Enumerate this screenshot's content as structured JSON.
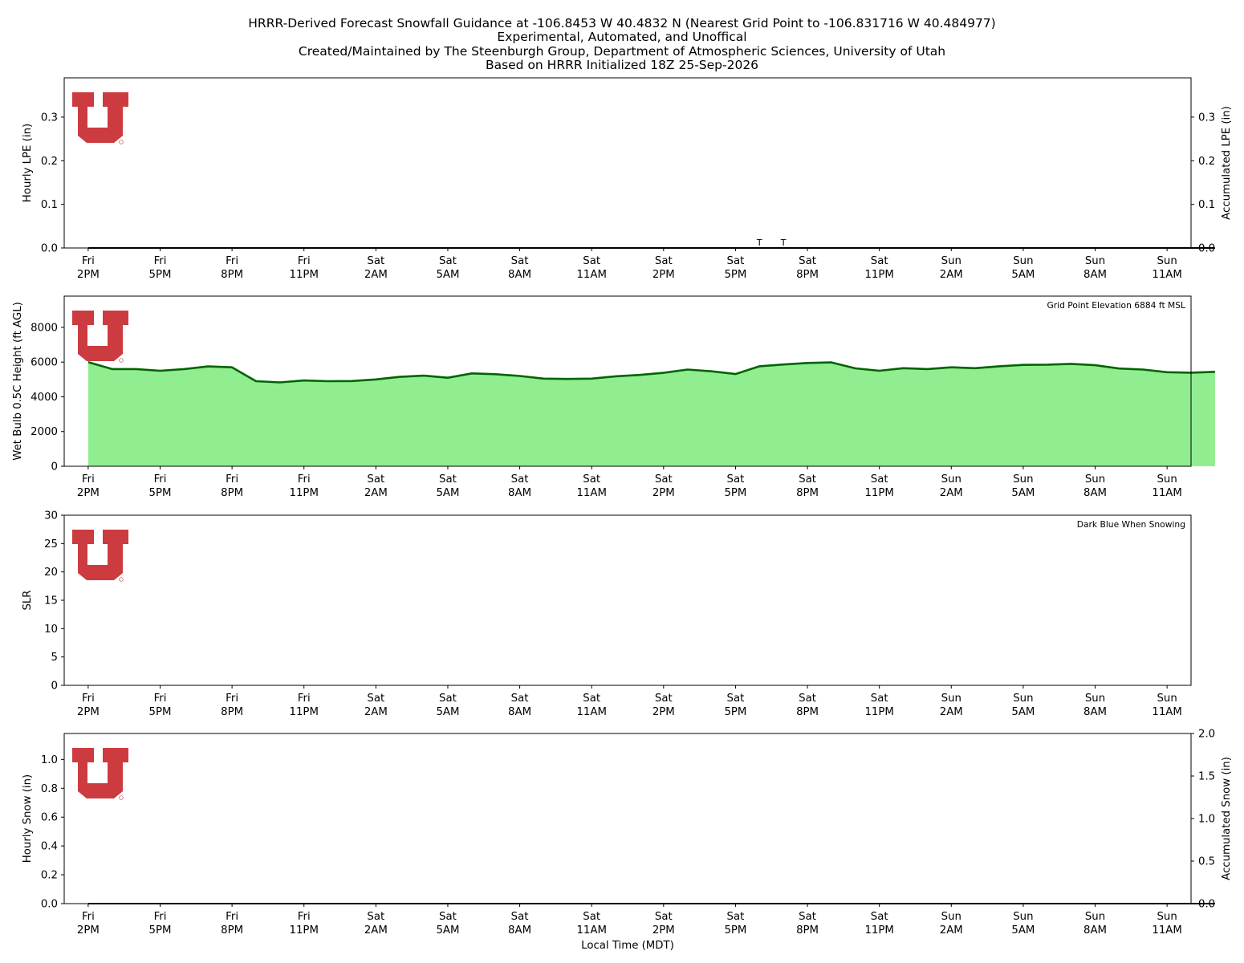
{
  "title_lines": [
    "HRRR-Derived Forecast Snowfall Guidance at -106.8453 W 40.4832 N (Nearest Grid Point to -106.831716 W 40.484977)",
    "Experimental, Automated, and Unoffical",
    "Created/Maintained by The Steenburgh Group, Department of Atmospheric Sciences, University of Utah",
    "Based on HRRR Initialized 18Z 25-Sep-2026"
  ],
  "colors": {
    "logo_red": "#cc3b3f",
    "wetbulb_fill": "#90ee90",
    "wetbulb_line": "#006400",
    "axis": "#000000"
  },
  "chart_data": [
    {
      "type": "line",
      "ylabel": "Hourly LPE (in)",
      "ylabel_right": "Accumulated LPE (in)",
      "ylim": [
        0,
        0.39
      ],
      "ylim_right": [
        0,
        0.39
      ],
      "yticks": [
        "0.0",
        "0.1",
        "0.2",
        "0.3"
      ],
      "yticks_right": [
        "0.0",
        "0.1",
        "0.2",
        "0.3"
      ],
      "ytick_values": [
        0,
        0.1,
        0.2,
        0.3
      ],
      "annotations": [
        {
          "x": 28.0,
          "text": "T"
        },
        {
          "x": 29.0,
          "text": "T"
        }
      ],
      "series": [
        {
          "values": [
            0,
            0,
            0,
            0,
            0,
            0,
            0,
            0,
            0,
            0,
            0,
            0,
            0,
            0,
            0,
            0,
            0,
            0,
            0,
            0,
            0,
            0,
            0,
            0,
            0,
            0,
            0,
            0,
            0,
            0,
            0,
            0,
            0,
            0,
            0,
            0,
            0,
            0,
            0,
            0,
            0,
            0,
            0,
            0,
            0,
            0,
            0,
            0
          ]
        }
      ]
    },
    {
      "type": "area",
      "ylabel": "Wet Bulb 0.5C Height (ft AGL)",
      "note": "Grid Point Elevation 6884 ft MSL",
      "ylim": [
        0,
        9800
      ],
      "yticks": [
        "0",
        "2000",
        "4000",
        "6000",
        "8000"
      ],
      "ytick_values": [
        0,
        2000,
        4000,
        6000,
        8000
      ],
      "series": [
        {
          "values": [
            6000,
            5600,
            5600,
            5500,
            5600,
            5750,
            5700,
            4900,
            4830,
            4940,
            4900,
            4910,
            5000,
            5150,
            5220,
            5100,
            5350,
            5300,
            5200,
            5050,
            5030,
            5050,
            5180,
            5260,
            5380,
            5570,
            5470,
            5310,
            5760,
            5860,
            5950,
            5980,
            5640,
            5500,
            5650,
            5600,
            5700,
            5650,
            5760,
            5840,
            5850,
            5900,
            5820,
            5630,
            5570,
            5420,
            5390,
            5440
          ]
        }
      ]
    },
    {
      "type": "bar",
      "ylabel": "SLR",
      "note": "Dark Blue When Snowing",
      "ylim": [
        0,
        30
      ],
      "yticks": [
        "0",
        "5",
        "10",
        "15",
        "20",
        "25",
        "30"
      ],
      "ytick_values": [
        0,
        5,
        10,
        15,
        20,
        25,
        30
      ],
      "series": [
        {
          "values": []
        }
      ]
    },
    {
      "type": "line",
      "ylabel": "Hourly Snow (in)",
      "ylabel_right": "Accumulated Snow (in)",
      "xlabel": "Local Time (MDT)",
      "ylim": [
        0,
        1.18
      ],
      "ylim_right": [
        0,
        2.0
      ],
      "yticks": [
        "0.0",
        "0.2",
        "0.4",
        "0.6",
        "0.8",
        "1.0"
      ],
      "ytick_values": [
        0,
        0.2,
        0.4,
        0.6,
        0.8,
        1.0
      ],
      "yticks_right": [
        "0.0",
        "0.5",
        "1.0",
        "1.5",
        "2.0"
      ],
      "ytick_values_right": [
        0,
        0.5,
        1.0,
        1.5,
        2.0
      ],
      "series": [
        {
          "values": [
            0,
            0,
            0,
            0,
            0,
            0,
            0,
            0,
            0,
            0,
            0,
            0,
            0,
            0,
            0,
            0,
            0,
            0,
            0,
            0,
            0,
            0,
            0,
            0,
            0,
            0,
            0,
            0,
            0,
            0,
            0,
            0,
            0,
            0,
            0,
            0,
            0,
            0,
            0,
            0,
            0,
            0,
            0,
            0,
            0,
            0,
            0,
            0
          ]
        }
      ]
    }
  ],
  "x_axis": {
    "xlim": [
      -1,
      46
    ],
    "tick_values": [
      0,
      3,
      6,
      9,
      12,
      15,
      18,
      21,
      24,
      27,
      30,
      33,
      36,
      39,
      42,
      45
    ],
    "ticks": [
      {
        "day": "Fri",
        "time": "2PM"
      },
      {
        "day": "Fri",
        "time": "5PM"
      },
      {
        "day": "Fri",
        "time": "8PM"
      },
      {
        "day": "Fri",
        "time": "11PM"
      },
      {
        "day": "Sat",
        "time": "2AM"
      },
      {
        "day": "Sat",
        "time": "5AM"
      },
      {
        "day": "Sat",
        "time": "8AM"
      },
      {
        "day": "Sat",
        "time": "11AM"
      },
      {
        "day": "Sat",
        "time": "2PM"
      },
      {
        "day": "Sat",
        "time": "5PM"
      },
      {
        "day": "Sat",
        "time": "8PM"
      },
      {
        "day": "Sat",
        "time": "11PM"
      },
      {
        "day": "Sun",
        "time": "2AM"
      },
      {
        "day": "Sun",
        "time": "5AM"
      },
      {
        "day": "Sun",
        "time": "8AM"
      },
      {
        "day": "Sun",
        "time": "11AM"
      }
    ]
  }
}
